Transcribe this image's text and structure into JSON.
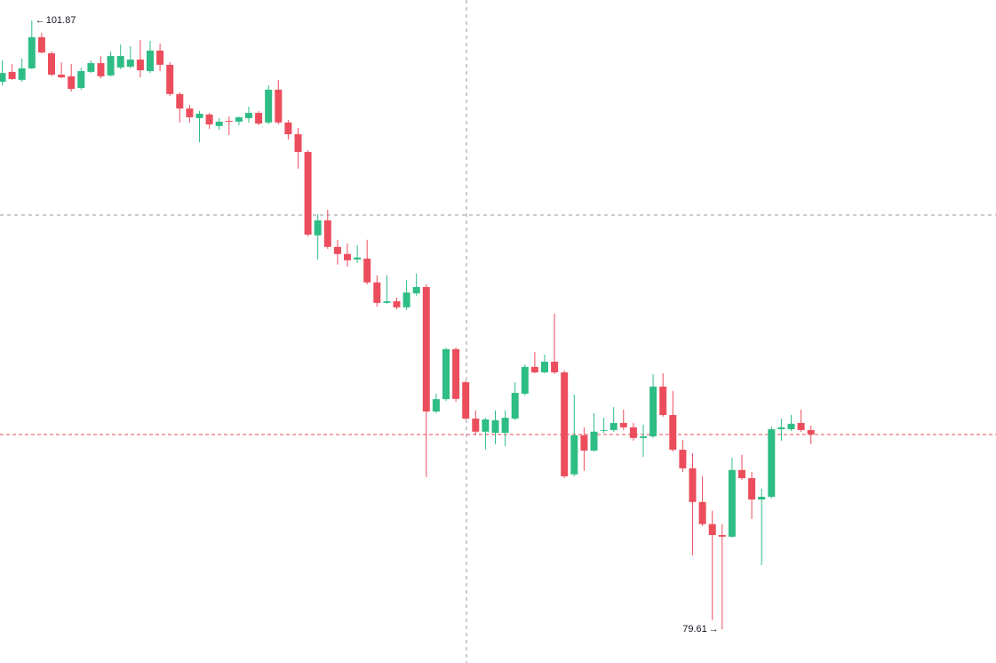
{
  "chart_data": {
    "type": "candlestick",
    "up_color": "#2ebd85",
    "down_color": "#ec4d5c",
    "ylim": [
      78.37,
      102.62
    ],
    "open": [
      99.63,
      99.99,
      99.7,
      100.12,
      101.26,
      100.67,
      99.89,
      99.83,
      99.4,
      99.99,
      100.31,
      99.86,
      100.15,
      100.18,
      100.44,
      100.02,
      100.77,
      100.25,
      99.18,
      98.65,
      98.3,
      98.43,
      98.01,
      98.2,
      98.17,
      98.3,
      98.49,
      98.14,
      99.34,
      98.14,
      97.71,
      97.06,
      94.01,
      94.56,
      93.59,
      93.33,
      93.13,
      93.16,
      92.29,
      91.54,
      91.6,
      91.38,
      91.89,
      92.12,
      87.57,
      88.02,
      89.85,
      88.64,
      87.31,
      86.83,
      86.79,
      86.79,
      87.31,
      88.22,
      89.2,
      89.0,
      89.39,
      89.0,
      85.27,
      86.7,
      86.14,
      86.86,
      86.89,
      87.15,
      86.99,
      86.6,
      86.66,
      88.48,
      87.44,
      86.17,
      85.49,
      84.26,
      83.45,
      83.05,
      82.99,
      85.43,
      85.13,
      84.35,
      84.45,
      86.92,
      86.92,
      87.15,
      86.89
    ],
    "high": [
      100.41,
      100.28,
      100.48,
      101.87,
      101.42,
      100.74,
      100.35,
      100.28,
      100.15,
      100.41,
      100.57,
      100.74,
      100.99,
      100.93,
      101.16,
      101.13,
      101.03,
      100.35,
      99.24,
      98.78,
      98.56,
      98.49,
      98.3,
      98.36,
      98.36,
      98.72,
      98.56,
      99.5,
      99.7,
      98.23,
      97.94,
      97.13,
      94.79,
      94.95,
      93.85,
      93.72,
      93.65,
      93.85,
      92.55,
      92.55,
      91.73,
      92.38,
      92.62,
      92.22,
      88.22,
      89.9,
      89.91,
      88.71,
      87.61,
      87.34,
      87.61,
      87.61,
      88.64,
      89.29,
      89.75,
      89.65,
      91.15,
      89.07,
      88.19,
      86.99,
      87.51,
      87.34,
      87.73,
      87.64,
      87.15,
      87.09,
      88.94,
      88.97,
      88.32,
      86.53,
      86.05,
      85.2,
      83.94,
      83.45,
      85.88,
      85.98,
      85.36,
      84.75,
      87.02,
      87.31,
      87.44,
      87.64,
      87.05
    ],
    "low": [
      99.5,
      99.7,
      99.63,
      100.09,
      100.67,
      99.83,
      99.76,
      99.27,
      99.34,
      99.95,
      99.76,
      99.83,
      100.09,
      100.12,
      99.79,
      99.95,
      100.02,
      99.11,
      98.14,
      98.14,
      97.42,
      97.91,
      97.87,
      97.68,
      98.04,
      98.14,
      98.04,
      98.07,
      98.07,
      97.52,
      96.45,
      93.97,
      93.13,
      93.52,
      92.94,
      92.87,
      93.0,
      92.22,
      91.41,
      91.51,
      91.31,
      91.28,
      91.8,
      85.17,
      87.51,
      87.95,
      87.93,
      87.28,
      86.7,
      86.18,
      86.37,
      86.3,
      87.25,
      88.16,
      88.97,
      88.97,
      88.94,
      85.14,
      85.2,
      85.4,
      86.11,
      86.79,
      86.83,
      86.89,
      86.5,
      85.91,
      86.6,
      87.38,
      86.11,
      85.36,
      82.31,
      83.38,
      79.94,
      79.61,
      82.96,
      85.07,
      83.64,
      81.95,
      84.39,
      86.5,
      86.86,
      86.83,
      86.37
    ],
    "close": [
      99.95,
      99.73,
      100.12,
      101.26,
      100.7,
      99.89,
      99.79,
      99.37,
      100.02,
      100.31,
      99.83,
      100.57,
      100.57,
      100.44,
      100.05,
      100.77,
      100.25,
      99.18,
      98.65,
      98.33,
      98.46,
      98.07,
      98.17,
      98.17,
      98.33,
      98.49,
      98.1,
      99.34,
      98.14,
      97.71,
      97.06,
      94.04,
      94.56,
      93.59,
      93.33,
      93.1,
      93.2,
      92.29,
      91.54,
      91.6,
      91.38,
      91.92,
      92.12,
      87.57,
      88.02,
      89.85,
      88.03,
      87.31,
      86.83,
      87.28,
      87.25,
      87.34,
      88.25,
      89.2,
      89.0,
      89.39,
      89.0,
      85.2,
      86.7,
      86.14,
      86.83,
      86.89,
      87.15,
      86.99,
      86.6,
      86.66,
      88.48,
      87.44,
      86.17,
      85.49,
      84.26,
      83.45,
      83.05,
      82.99,
      85.43,
      85.13,
      84.35,
      84.45,
      86.92,
      86.99,
      87.12,
      86.89,
      86.73
    ]
  }
}
